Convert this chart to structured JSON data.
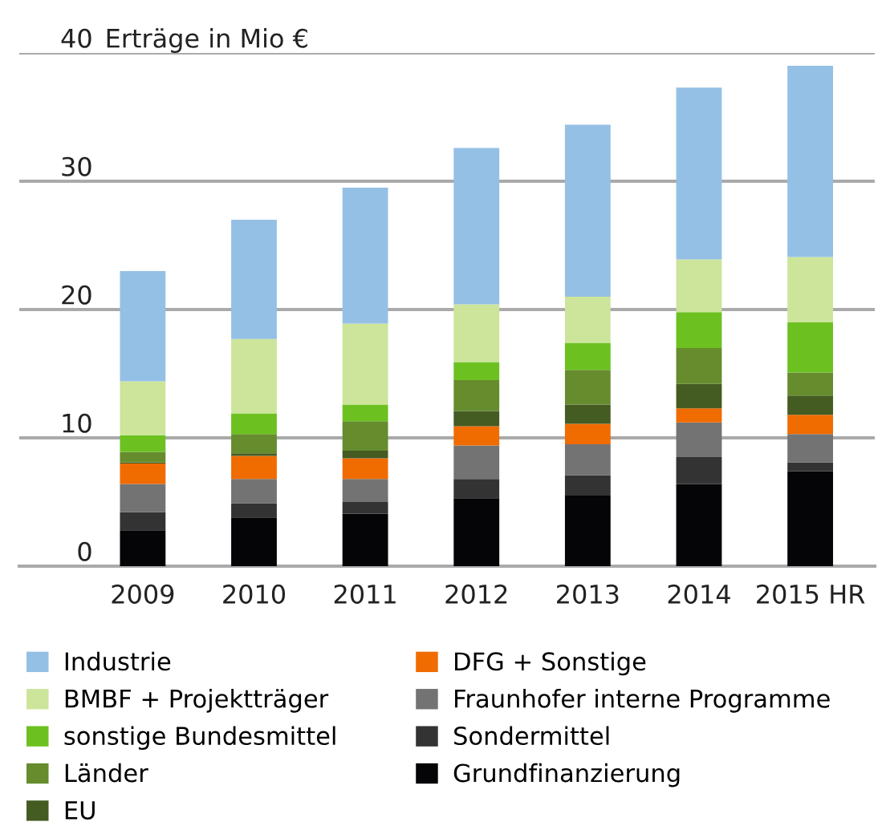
{
  "chart_data": {
    "type": "bar",
    "title": "Erträge in Mio €",
    "stacked": true,
    "categories": [
      "2009",
      "2010",
      "2011",
      "2012",
      "2013",
      "2014",
      "2015 HR"
    ],
    "series": [
      {
        "name": "Grundfinanzierung",
        "color": "#050508",
        "values": [
          2.8,
          3.8,
          4.1,
          5.3,
          5.5,
          6.4,
          7.4
        ]
      },
      {
        "name": "Sondermittel",
        "color": "#333333",
        "values": [
          1.4,
          1.1,
          0.9,
          1.5,
          1.6,
          2.1,
          0.7
        ]
      },
      {
        "name": "Fraunhofer interne Programme",
        "color": "#737373",
        "values": [
          2.2,
          1.9,
          1.8,
          2.6,
          2.4,
          2.7,
          2.2
        ]
      },
      {
        "name": "DFG + Sonstige",
        "color": "#f06b00",
        "values": [
          1.6,
          1.8,
          1.6,
          1.5,
          1.6,
          1.1,
          1.5
        ]
      },
      {
        "name": "EU",
        "color": "#445b22",
        "values": [
          0.1,
          0.2,
          0.6,
          1.2,
          1.5,
          1.9,
          1.5
        ]
      },
      {
        "name": "Länder",
        "color": "#668c2e",
        "values": [
          0.8,
          1.5,
          2.3,
          2.4,
          2.7,
          2.8,
          1.8
        ]
      },
      {
        "name": "sonstige Bundesmittel",
        "color": "#6cc121",
        "values": [
          1.3,
          1.6,
          1.3,
          1.4,
          2.1,
          2.8,
          3.9
        ]
      },
      {
        "name": "BMBF + Projektträger",
        "color": "#cce59a",
        "values": [
          4.2,
          5.8,
          6.3,
          4.5,
          3.6,
          4.1,
          5.1
        ]
      },
      {
        "name": "Industrie",
        "color": "#95c0e5",
        "values": [
          8.6,
          9.3,
          10.6,
          12.2,
          13.4,
          13.4,
          14.9
        ]
      }
    ],
    "ylim": [
      0,
      40
    ],
    "yticks": [
      0,
      10,
      20,
      30,
      40
    ],
    "grid": "y",
    "legend": "bottom"
  }
}
